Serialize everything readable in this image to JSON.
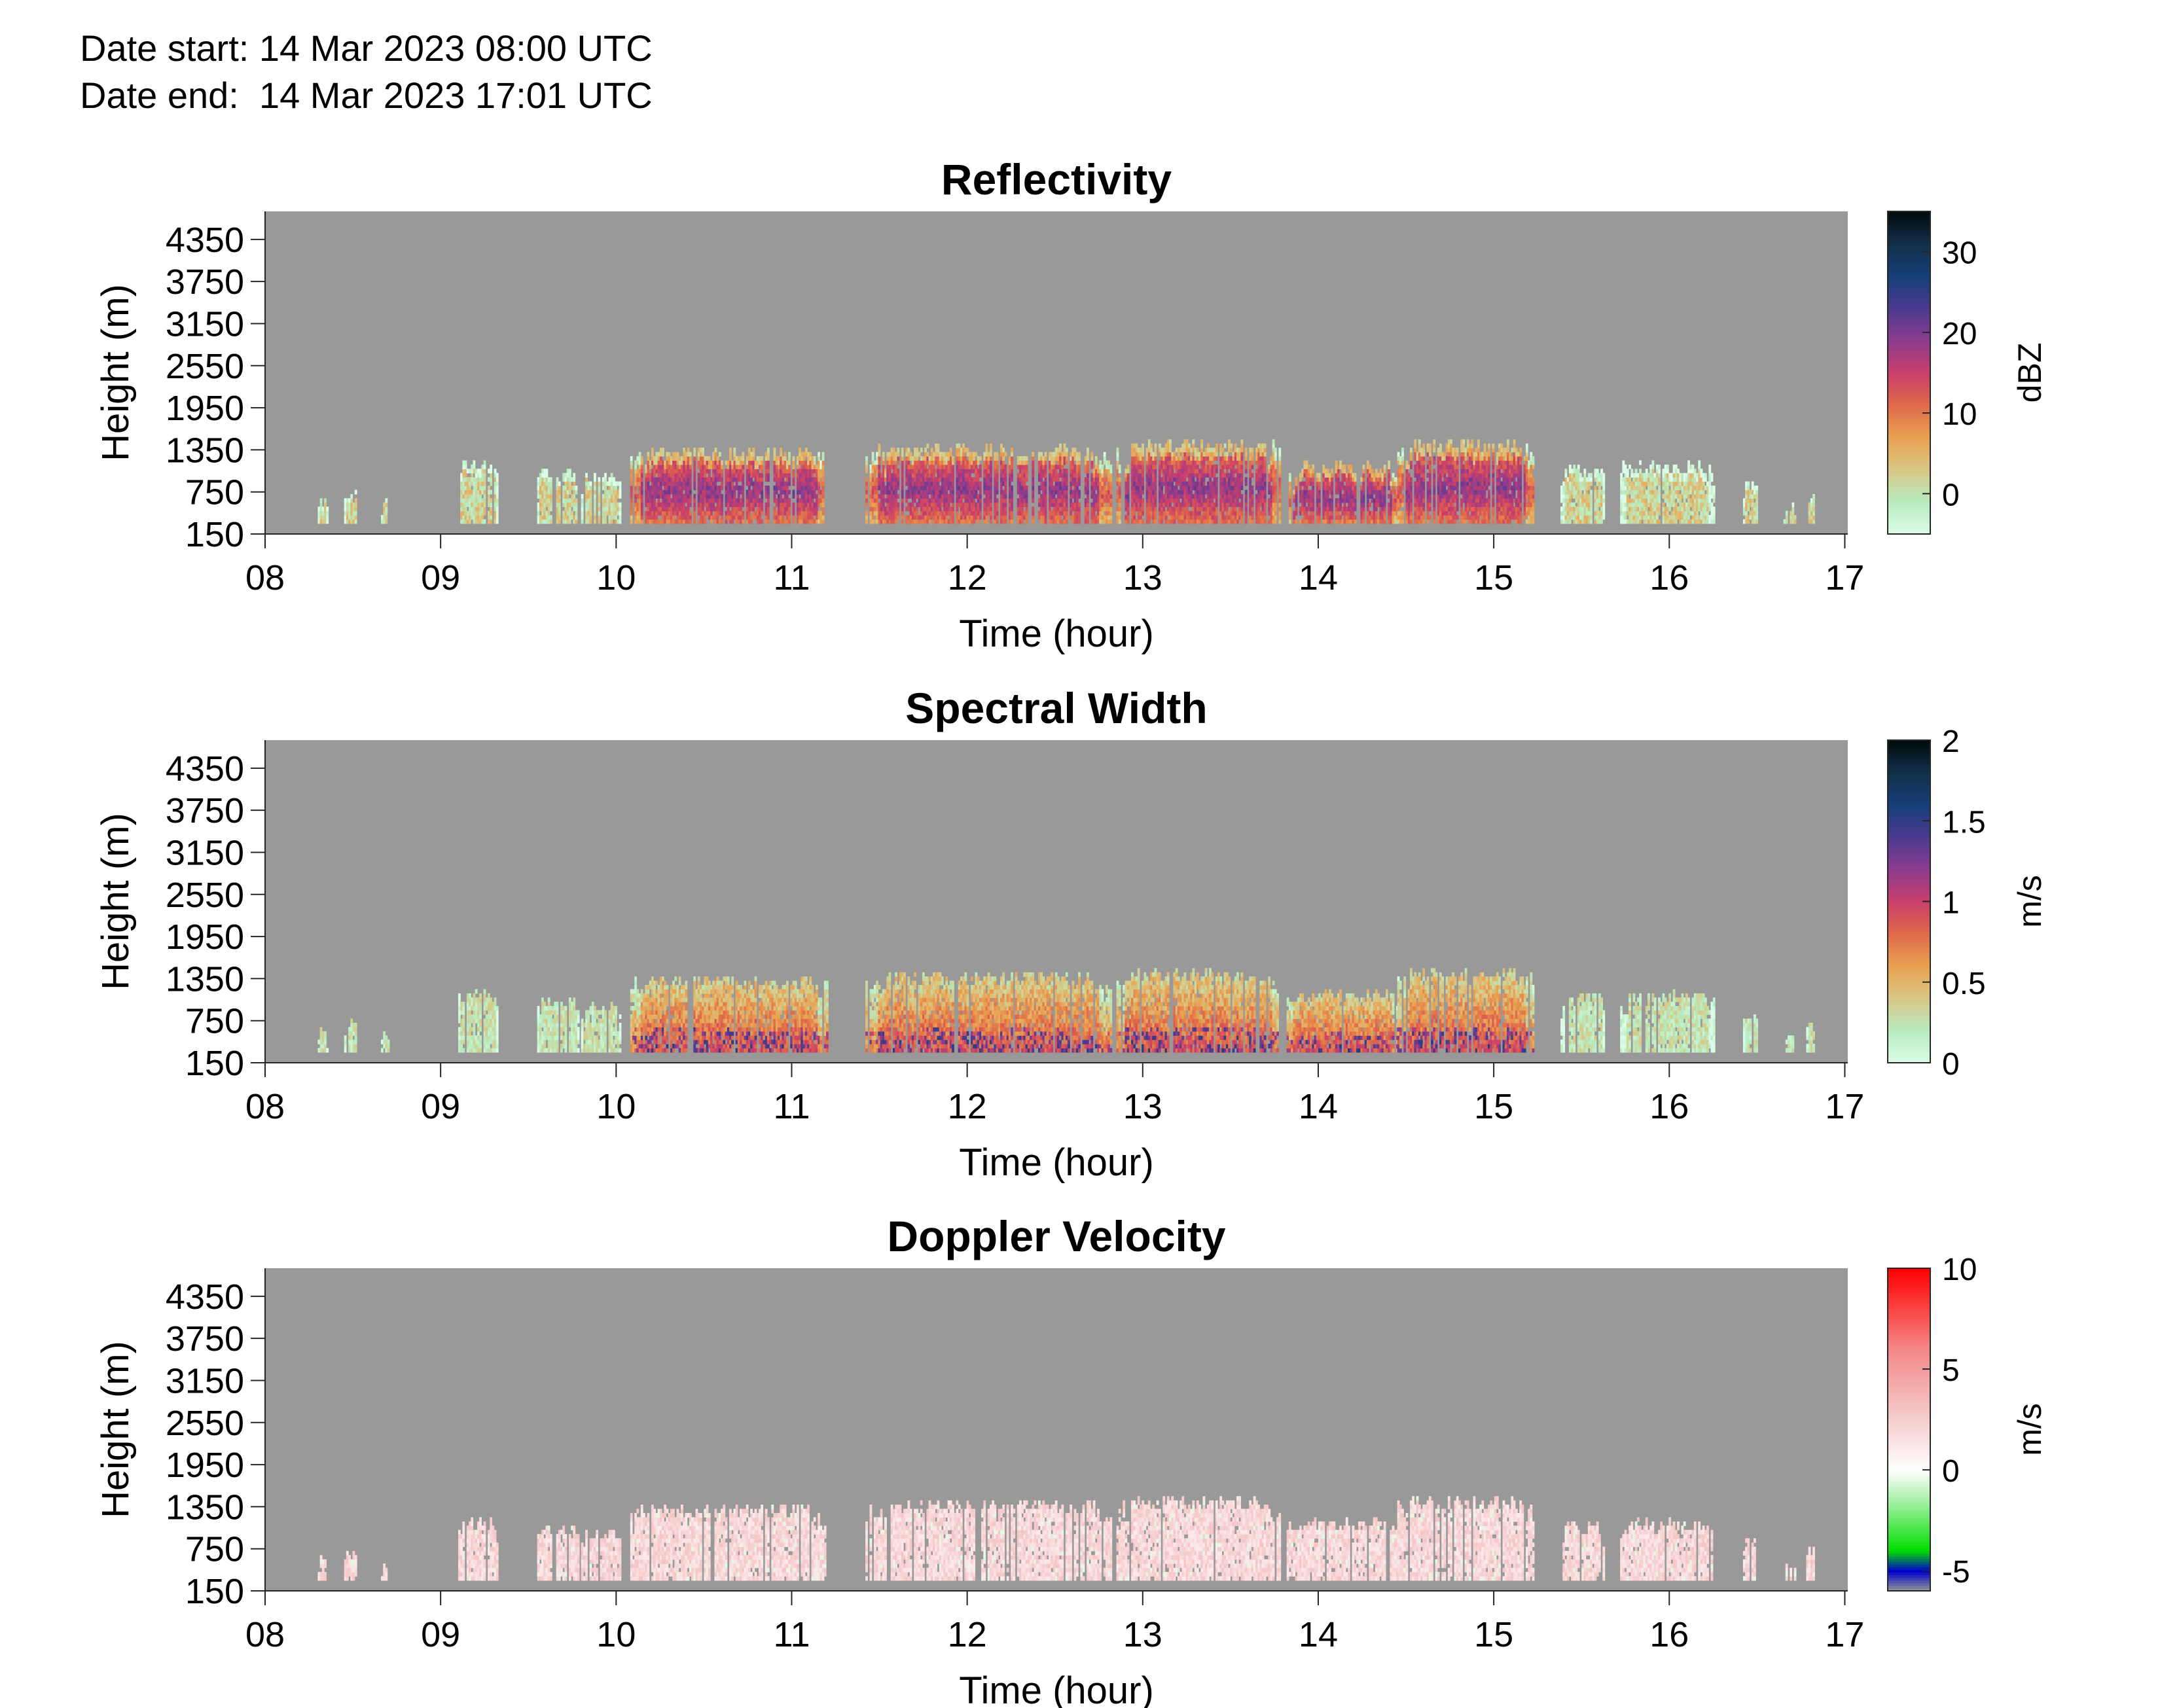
{
  "header": {
    "date_start": "Date start: 14 Mar 2023 08:00 UTC",
    "date_end": "Date end:  14 Mar 2023 17:01 UTC"
  },
  "chart_data": [
    {
      "type": "heatmap",
      "title": "Reflectivity",
      "xlabel": "Time (hour)",
      "ylabel": "Height (m)",
      "x_tick_labels": [
        "08",
        "09",
        "10",
        "11",
        "12",
        "13",
        "14",
        "15",
        "16",
        "17"
      ],
      "x_ticks": [
        8,
        9,
        10,
        11,
        12,
        13,
        14,
        15,
        16,
        17
      ],
      "xlim": [
        8,
        17.017
      ],
      "y_tick_labels": [
        "150",
        "750",
        "1350",
        "1950",
        "2550",
        "3150",
        "3750",
        "4350"
      ],
      "y_ticks": [
        150,
        750,
        1350,
        1950,
        2550,
        3150,
        3750,
        4350
      ],
      "ylim": [
        150,
        4750
      ],
      "background_color": "#999999",
      "colorbar": {
        "label": "dBZ",
        "ticks": [
          0,
          10,
          20,
          30
        ],
        "tick_labels": [
          "0",
          "10",
          "20",
          "30"
        ],
        "range": [
          -5,
          35
        ],
        "colors": [
          "#dcfce8",
          "#b7ebbf",
          "#d8c886",
          "#e9a150",
          "#e06a4a",
          "#c93f6a",
          "#8e3c8e",
          "#4a3a8f",
          "#173f78",
          "#12304a",
          "#030a0c"
        ]
      },
      "mode": "reflectivity"
    },
    {
      "type": "heatmap",
      "title": "Spectral Width",
      "xlabel": "Time (hour)",
      "ylabel": "Height (m)",
      "x_tick_labels": [
        "08",
        "09",
        "10",
        "11",
        "12",
        "13",
        "14",
        "15",
        "16",
        "17"
      ],
      "x_ticks": [
        8,
        9,
        10,
        11,
        12,
        13,
        14,
        15,
        16,
        17
      ],
      "xlim": [
        8,
        17.017
      ],
      "y_tick_labels": [
        "150",
        "750",
        "1350",
        "1950",
        "2550",
        "3150",
        "3750",
        "4350"
      ],
      "y_ticks": [
        150,
        750,
        1350,
        1950,
        2550,
        3150,
        3750,
        4350
      ],
      "ylim": [
        150,
        4750
      ],
      "background_color": "#999999",
      "colorbar": {
        "label": "m/s",
        "ticks": [
          0,
          0.5,
          1,
          1.5,
          2
        ],
        "tick_labels": [
          "0",
          "0.5",
          "1",
          "1.5",
          "2"
        ],
        "range": [
          0,
          2
        ],
        "colors": [
          "#dcfce8",
          "#b7ebbf",
          "#d8c886",
          "#e9a150",
          "#e06a4a",
          "#c93f6a",
          "#8e3c8e",
          "#4a3a8f",
          "#173f78",
          "#12304a",
          "#030a0c"
        ]
      },
      "mode": "width"
    },
    {
      "type": "heatmap",
      "title": "Doppler Velocity",
      "xlabel": "Time (hour)",
      "ylabel": "Height (m)",
      "x_tick_labels": [
        "08",
        "09",
        "10",
        "11",
        "12",
        "13",
        "14",
        "15",
        "16",
        "17"
      ],
      "x_ticks": [
        8,
        9,
        10,
        11,
        12,
        13,
        14,
        15,
        16,
        17
      ],
      "xlim": [
        8,
        17.017
      ],
      "y_tick_labels": [
        "150",
        "750",
        "1350",
        "1950",
        "2550",
        "3150",
        "3750",
        "4350"
      ],
      "y_ticks": [
        150,
        750,
        1350,
        1950,
        2550,
        3150,
        3750,
        4350
      ],
      "ylim": [
        150,
        4750
      ],
      "background_color": "#999999",
      "colorbar": {
        "label": "m/s",
        "ticks": [
          -5,
          0,
          5,
          10
        ],
        "tick_labels": [
          "-5",
          "0",
          "5",
          "10"
        ],
        "range": [
          -6,
          10
        ],
        "colors": [
          "#999999",
          "#0000cc",
          "#00dd00",
          "#a8f0a8",
          "#ffffff",
          "#f4c4c4",
          "#f48888",
          "#ff0000"
        ],
        "color_stops": [
          -6,
          -5,
          -4,
          -1.5,
          0,
          3,
          6,
          10
        ]
      },
      "mode": "velocity"
    }
  ],
  "echo_segments_hours": [
    [
      8.3,
      8.35,
      600
    ],
    [
      8.45,
      8.52,
      700
    ],
    [
      8.66,
      8.7,
      550
    ],
    [
      9.1,
      9.32,
      1100
    ],
    [
      9.55,
      9.78,
      1000
    ],
    [
      9.8,
      10.02,
      950
    ],
    [
      10.08,
      11.2,
      1300
    ],
    [
      11.42,
      12.82,
      1350
    ],
    [
      12.85,
      13.78,
      1400
    ],
    [
      13.82,
      14.45,
      1100
    ],
    [
      14.45,
      15.22,
      1400
    ],
    [
      15.38,
      15.63,
      1050
    ],
    [
      15.72,
      16.25,
      1080
    ],
    [
      16.42,
      16.5,
      800
    ],
    [
      16.65,
      16.72,
      500
    ],
    [
      16.78,
      16.82,
      700
    ]
  ]
}
